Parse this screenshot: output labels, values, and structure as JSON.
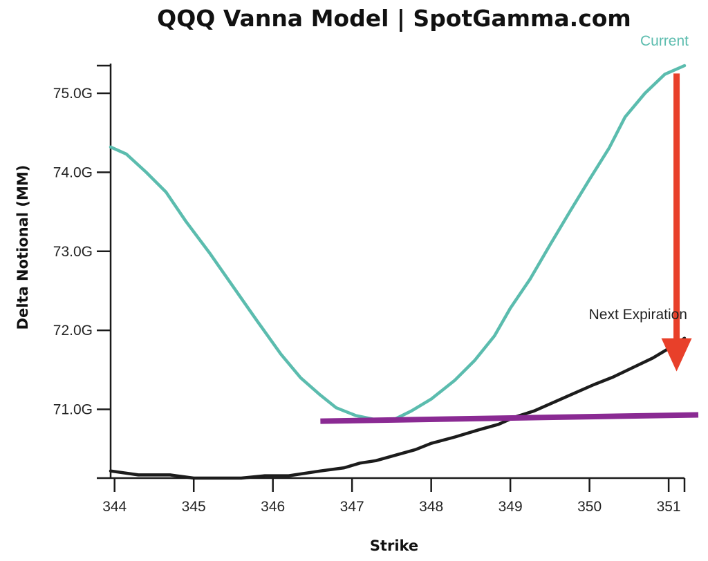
{
  "chart_data": {
    "type": "line",
    "title": "QQQ Vanna Model | SpotGamma.com",
    "xlabel": "Strike",
    "ylabel": "Delta Notional (MM)",
    "xlim": [
      343.95,
      351.2
    ],
    "ylim": [
      70.13,
      75.35
    ],
    "x_ticks": [
      {
        "value": 344,
        "label": "344"
      },
      {
        "value": 345,
        "label": "345"
      },
      {
        "value": 346,
        "label": "346"
      },
      {
        "value": 347,
        "label": "347"
      },
      {
        "value": 348,
        "label": "348"
      },
      {
        "value": 349,
        "label": "349"
      },
      {
        "value": 350,
        "label": "350"
      },
      {
        "value": 351,
        "label": "351"
      }
    ],
    "y_ticks": [
      {
        "value": 71,
        "label": "71.0G"
      },
      {
        "value": 72,
        "label": "72.0G"
      },
      {
        "value": 73,
        "label": "73.0G"
      },
      {
        "value": 74,
        "label": "74.0G"
      },
      {
        "value": 75,
        "label": "75.0G"
      }
    ],
    "grid": false,
    "series": [
      {
        "name": "Current",
        "color": "#5bbcae",
        "x": [
          343.95,
          344.15,
          344.4,
          344.65,
          344.9,
          345.2,
          345.5,
          345.8,
          346.1,
          346.35,
          346.6,
          346.8,
          347.05,
          347.3,
          347.55,
          347.75,
          348.0,
          348.3,
          348.55,
          348.8,
          349.0,
          349.25,
          349.5,
          349.75,
          350.0,
          350.25,
          350.45,
          350.7,
          350.95,
          351.2
        ],
        "y": [
          74.32,
          74.23,
          74.0,
          73.75,
          73.38,
          72.98,
          72.55,
          72.12,
          71.7,
          71.4,
          71.18,
          71.02,
          70.92,
          70.87,
          70.88,
          70.98,
          71.13,
          71.37,
          71.62,
          71.93,
          72.28,
          72.65,
          73.08,
          73.5,
          73.91,
          74.31,
          74.7,
          75.0,
          75.24,
          75.35
        ]
      },
      {
        "name": "Next Expiration",
        "color": "#1c1c1c",
        "x": [
          343.95,
          344.3,
          344.7,
          345.0,
          345.3,
          345.6,
          345.9,
          346.2,
          346.6,
          346.9,
          347.1,
          347.3,
          347.55,
          347.8,
          348.0,
          348.3,
          348.6,
          348.85,
          349.05,
          349.3,
          349.55,
          349.8,
          350.05,
          350.3,
          350.55,
          350.8,
          351.05,
          351.2
        ],
        "y": [
          70.22,
          70.17,
          70.17,
          70.13,
          70.13,
          70.13,
          70.16,
          70.16,
          70.22,
          70.26,
          70.32,
          70.35,
          70.42,
          70.49,
          70.57,
          70.65,
          70.74,
          70.81,
          70.9,
          70.98,
          71.09,
          71.2,
          71.31,
          71.41,
          71.53,
          71.65,
          71.8,
          71.9
        ]
      }
    ],
    "annotations": {
      "horizontal_line": {
        "color": "#8a2a93",
        "x": [
          346.6,
          351.2
        ],
        "y": [
          70.85,
          70.93
        ]
      },
      "arrow": {
        "color": "#e8402a",
        "x": 351.1,
        "y_from": 75.25,
        "y_to": 71.55
      }
    },
    "series_labels": [
      {
        "text": "Current",
        "color": "#5bbcae"
      },
      {
        "text": "Next Expiration",
        "color": "#222222"
      }
    ]
  }
}
